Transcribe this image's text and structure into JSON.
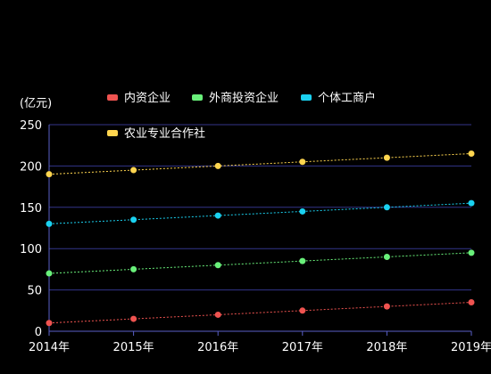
{
  "chart_data": {
    "type": "line",
    "ylabel": "(亿元)",
    "categories": [
      "2014年",
      "2015年",
      "2016年",
      "2017年",
      "2018年",
      "2019年"
    ],
    "ylim": [
      0,
      250
    ],
    "yticks": [
      0,
      50,
      100,
      150,
      200,
      250
    ],
    "grid": true,
    "legend_position": "top",
    "series": [
      {
        "name": "内资企业",
        "color": "#ef5350",
        "values": [
          10,
          15,
          20,
          25,
          30,
          35
        ]
      },
      {
        "name": "外商投资企业",
        "color": "#69f07a",
        "values": [
          70,
          75,
          80,
          85,
          90,
          95
        ]
      },
      {
        "name": "个体工商户",
        "color": "#1ad1f0",
        "values": [
          130,
          135,
          140,
          145,
          150,
          155
        ]
      },
      {
        "name": "农业专业合作社",
        "color": "#ffd54f",
        "values": [
          190,
          195,
          200,
          205,
          210,
          215
        ]
      }
    ]
  },
  "colors": {
    "background": "#000000",
    "axis": "#5a5fc8",
    "grid": "#33358a",
    "text": "#ffffff"
  }
}
